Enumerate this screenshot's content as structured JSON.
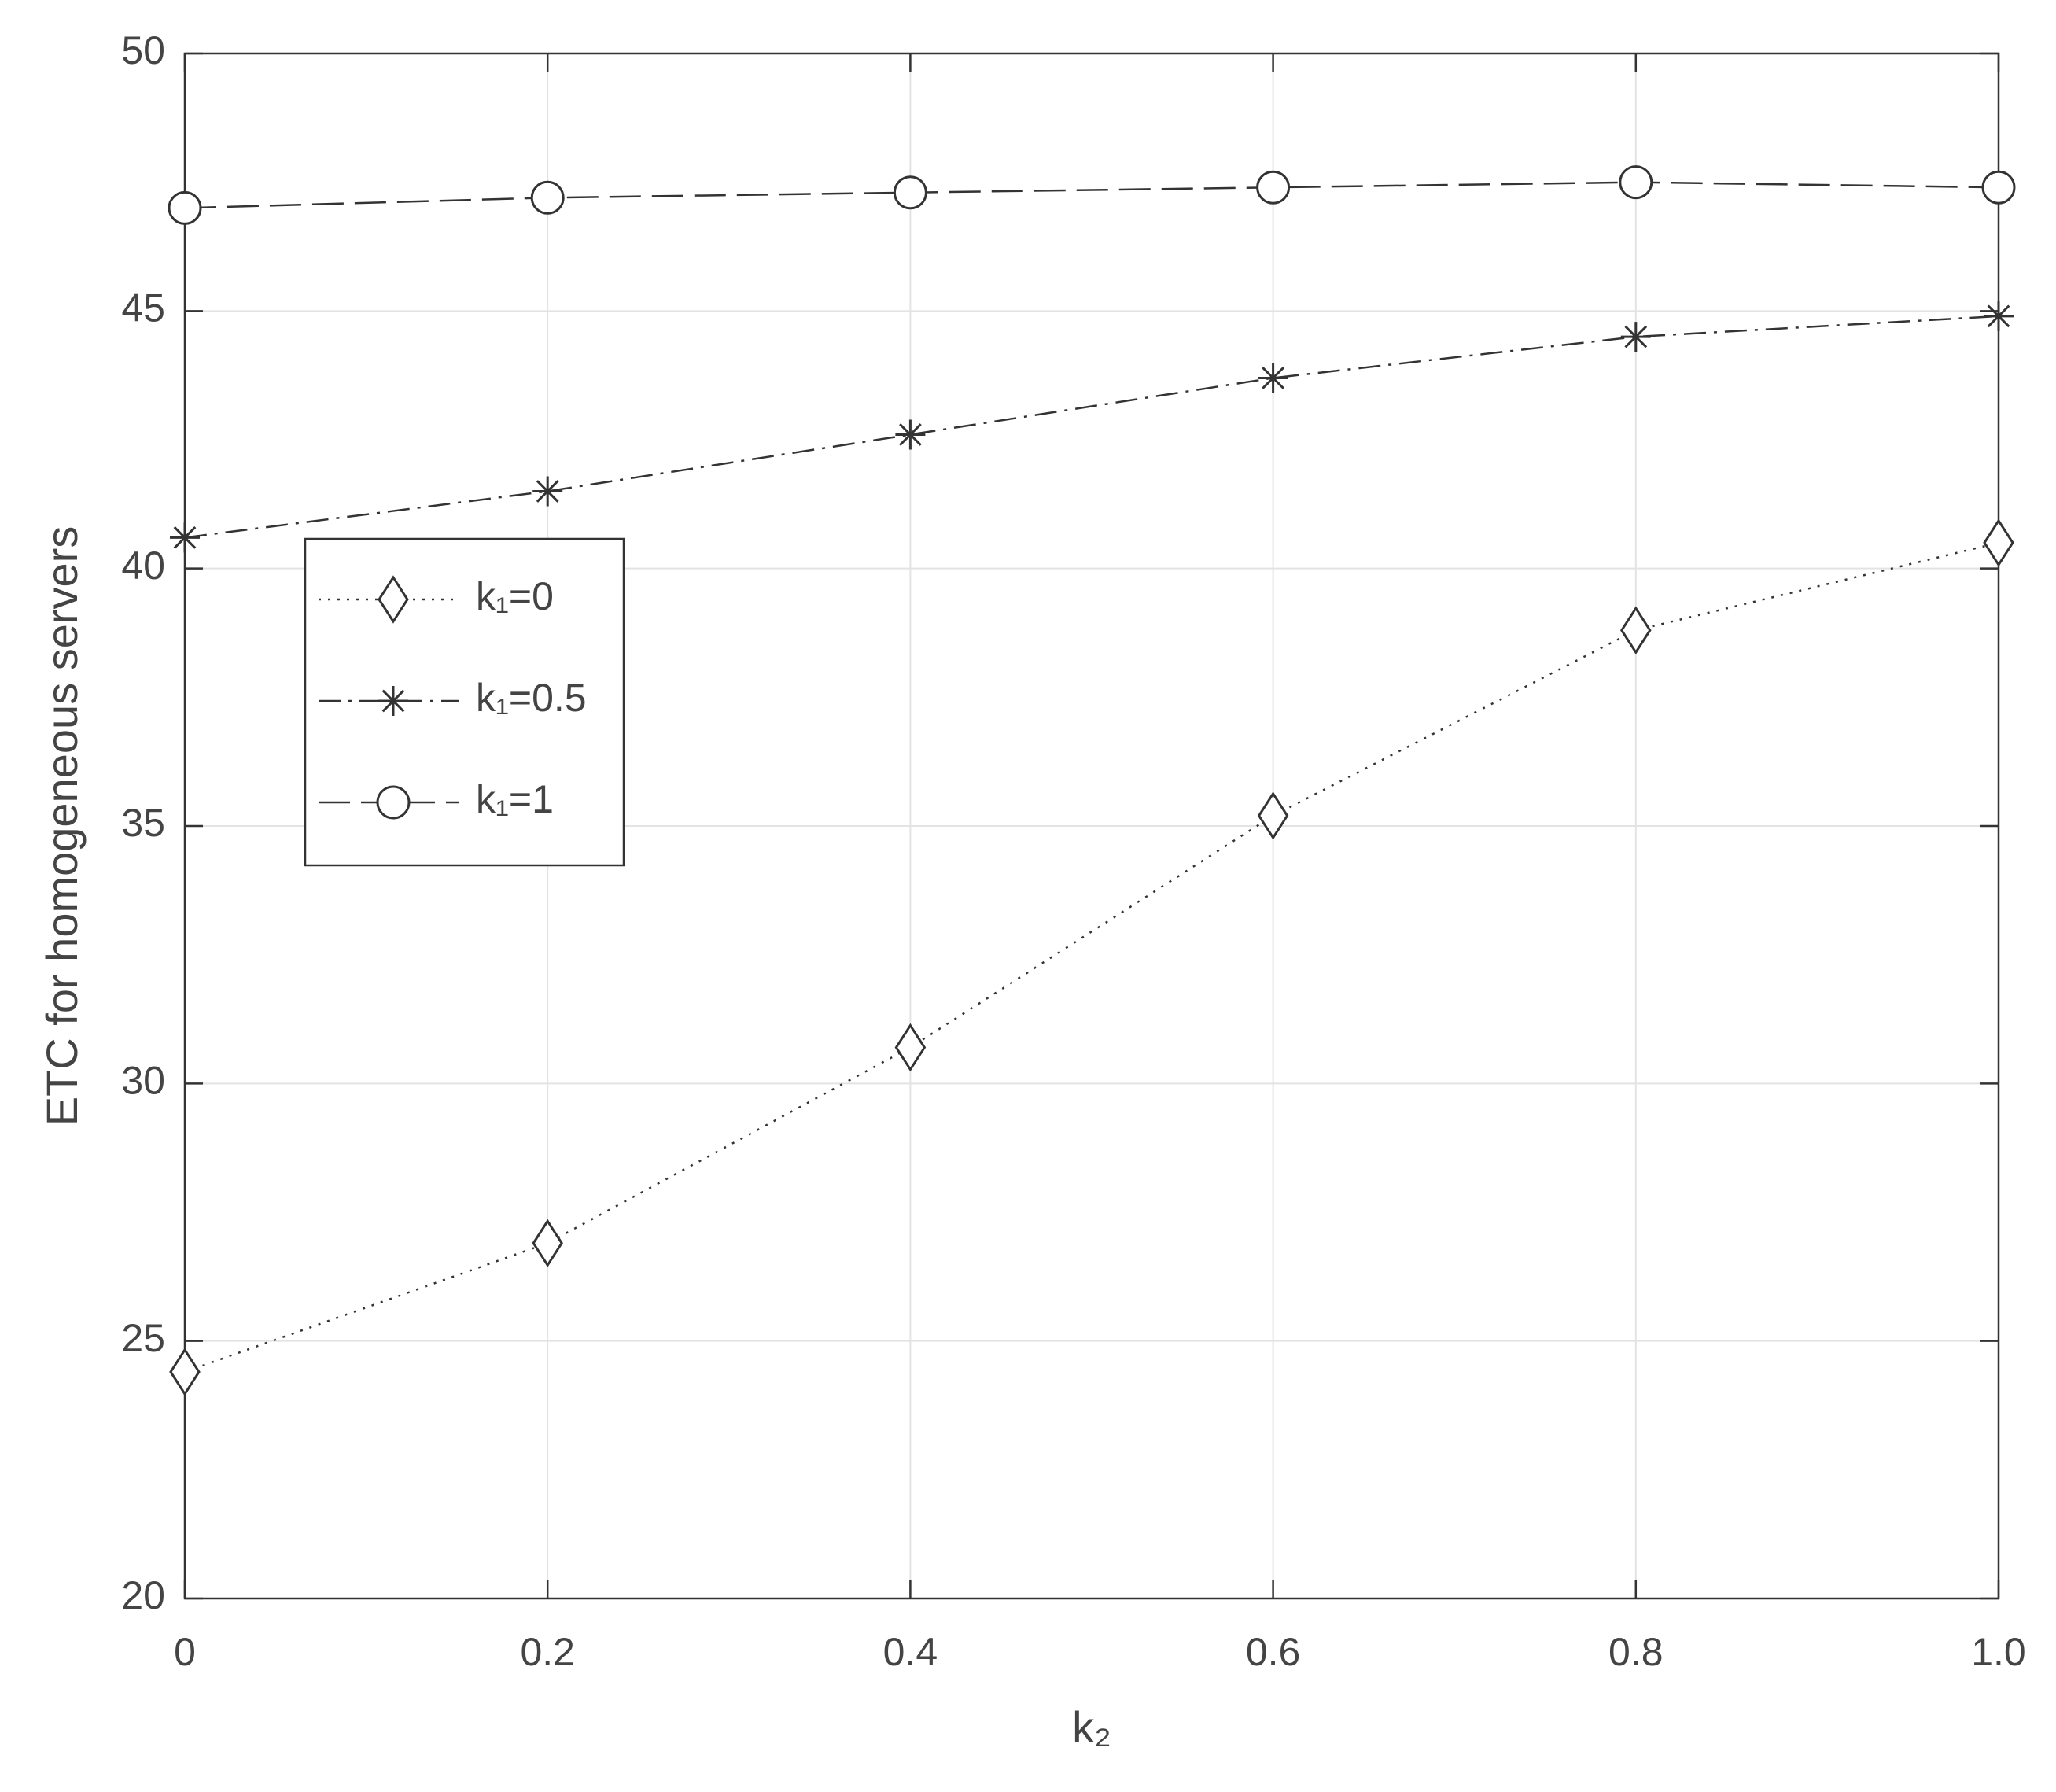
{
  "chart_data": {
    "type": "line",
    "xlabel": "k₂",
    "ylabel": "ETC for homogeneous servers",
    "x": [
      0,
      0.2,
      0.4,
      0.6,
      0.8,
      1
    ],
    "series": [
      {
        "name": "k₁=0",
        "color": "#333333",
        "linestyle": "dotted",
        "marker": "diamond",
        "values": [
          24.4,
          26.9,
          30.7,
          35.2,
          38.8,
          40.5
        ]
      },
      {
        "name": "k₁=0.5",
        "color": "#333333",
        "linestyle": "dashdot",
        "marker": "asterisk",
        "values": [
          40.6,
          41.5,
          42.6,
          43.7,
          44.5,
          44.9
        ]
      },
      {
        "name": "k₁=1",
        "color": "#333333",
        "linestyle": "dashed",
        "marker": "circle",
        "values": [
          47.0,
          47.2,
          47.3,
          47.4,
          47.5,
          47.4
        ]
      }
    ],
    "xlim": [
      0,
      1
    ],
    "xticks": [
      0,
      0.2,
      0.4,
      0.6,
      0.8,
      {
        "value": 1,
        "label": "1.0"
      }
    ],
    "ylim": [
      20,
      50
    ],
    "yticks": [
      20,
      25,
      30,
      35,
      40,
      45,
      50
    ],
    "grid": true,
    "legend": "west"
  }
}
